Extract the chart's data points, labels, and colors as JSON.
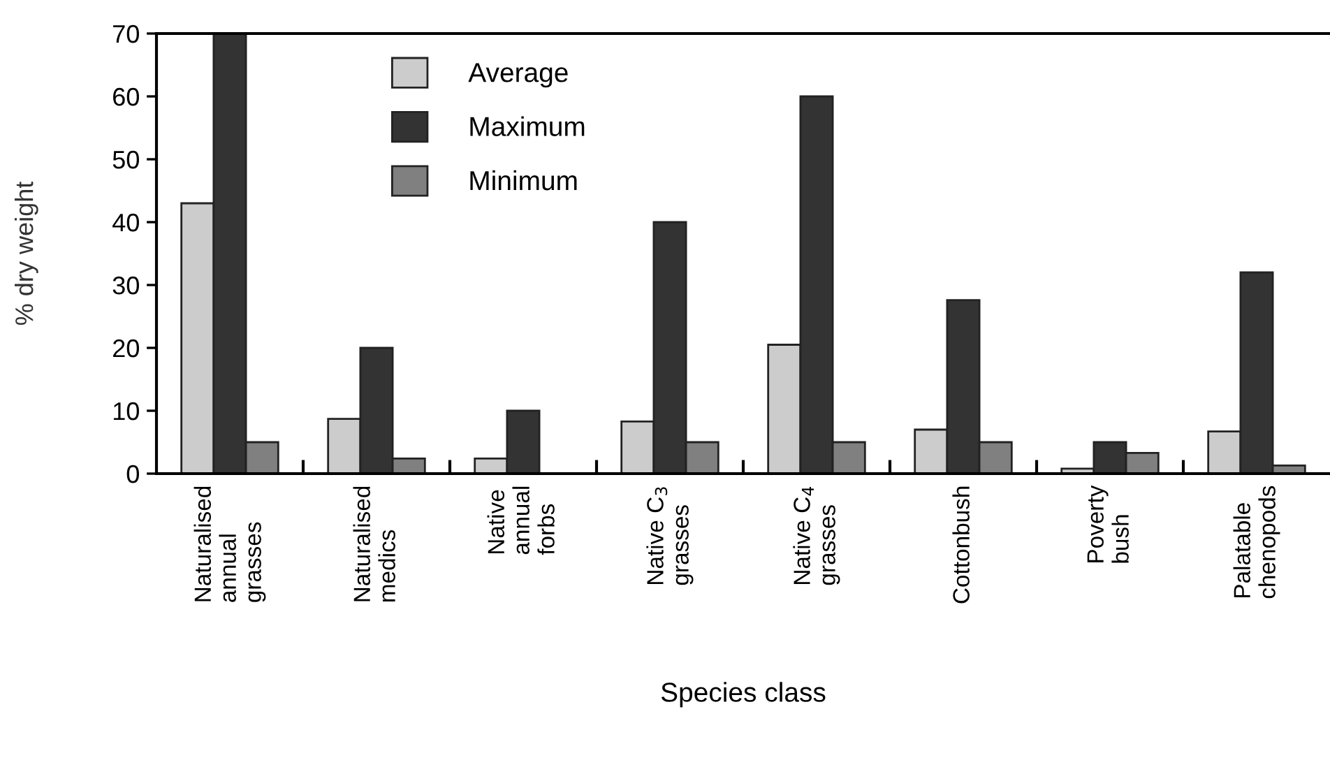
{
  "chart_data": {
    "type": "bar",
    "xlabel": "Species class",
    "ylabel": "% dry weight",
    "categories": [
      "Naturalised\nannual\ngrasses",
      "Naturalised\nmedics",
      "Native\nannual\nforbs",
      "Native C$_{3}$\ngrasses",
      "Native C$_{4}$\ngrasses",
      "Cottonbush",
      "Poverty\nbush",
      "Palatable\nchenopods"
    ],
    "series": [
      {
        "name": "Average",
        "color": "#cccccc",
        "values": [
          43,
          8.7,
          2.4,
          8.3,
          20.5,
          7.0,
          0.8,
          6.7
        ]
      },
      {
        "name": "Maximum",
        "color": "#333333",
        "values": [
          70,
          20,
          10,
          40,
          60,
          27.6,
          5,
          32
        ]
      },
      {
        "name": "Minimum",
        "color": "#808080",
        "values": [
          5,
          2.4,
          null,
          5,
          5,
          5,
          3.3,
          1.3
        ]
      }
    ],
    "ylim": [
      0,
      70
    ],
    "yticks": [
      0,
      10,
      20,
      30,
      40,
      50,
      60,
      70
    ],
    "grid": false,
    "legend": "top left"
  }
}
